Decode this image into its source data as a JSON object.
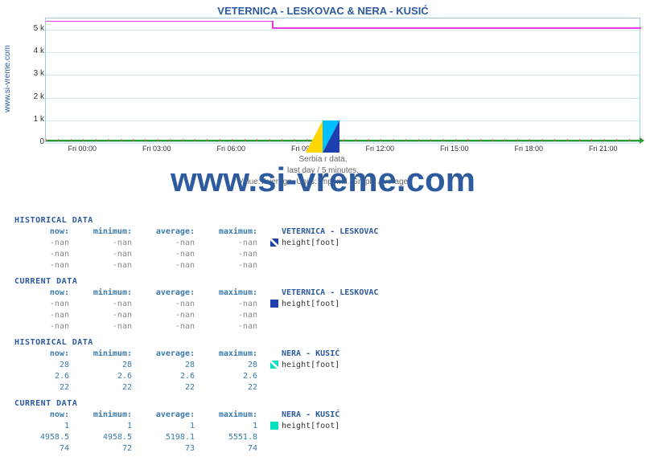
{
  "title": "VETERNICA -  LESKOVAC &  NERA -  KUSIĆ",
  "chart": {
    "type": "line",
    "background_color": "#ffffff",
    "grid_color": "#d0e6f2",
    "axis_color": "#9ec9e2",
    "title_color": "#2e5a9e",
    "ylim": [
      0,
      5500
    ],
    "yticks": [
      {
        "v": 0,
        "label": "0"
      },
      {
        "v": 1000,
        "label": "1 k"
      },
      {
        "v": 2000,
        "label": "2 k"
      },
      {
        "v": 3000,
        "label": "3 k"
      },
      {
        "v": 4000,
        "label": "4 k"
      },
      {
        "v": 5000,
        "label": "5 k"
      }
    ],
    "xticks": [
      "Fri 00:00",
      "Fri 03:00",
      "Fri 06:00",
      "Fri 09:00",
      "Fri 12:00",
      "Fri 15:00",
      "Fri 18:00",
      "Fri 21:00"
    ],
    "series": [
      {
        "name": "veternica",
        "color": "#e83ae8",
        "segments": [
          {
            "x0": 0,
            "x1": 0.38,
            "y": 5400
          },
          {
            "x0": 0.38,
            "x1": 1.0,
            "y": 5100
          }
        ]
      }
    ]
  },
  "ylabel": "www.si-vreme.com",
  "subtitle_lines": [
    "Serbia           r data.",
    "last day / 5 minutes.",
    "Value: Average. Units: imperial. Graph: Average"
  ],
  "watermark": "www.si-vreme.com",
  "logo_colors": {
    "yellow": "#ffd700",
    "blue": "#1e40af",
    "cyan": "#00bfff"
  },
  "tables": [
    {
      "section": "HISTORICAL DATA",
      "station": "VETERNICA -  LESKOVAC",
      "hdr": [
        "now:",
        "minimum:",
        "average:",
        "maximum:"
      ],
      "rows": [
        {
          "cells": [
            "-nan",
            "-nan",
            "-nan",
            "-nan"
          ],
          "legend": {
            "sq_color": "#1e40af",
            "sq_mark": true,
            "label": "height[foot]"
          }
        },
        {
          "cells": [
            "-nan",
            "-nan",
            "-nan",
            "-nan"
          ]
        },
        {
          "cells": [
            "-nan",
            "-nan",
            "-nan",
            "-nan"
          ]
        }
      ],
      "dim": true
    },
    {
      "section": "CURRENT DATA",
      "station": "VETERNICA -  LESKOVAC",
      "hdr": [
        "now:",
        "minimum:",
        "average:",
        "maximum:"
      ],
      "rows": [
        {
          "cells": [
            "-nan",
            "-nan",
            "-nan",
            "-nan"
          ],
          "legend": {
            "sq_color": "#1e40af",
            "label": "height[foot]"
          }
        },
        {
          "cells": [
            "-nan",
            "-nan",
            "-nan",
            "-nan"
          ]
        },
        {
          "cells": [
            "-nan",
            "-nan",
            "-nan",
            "-nan"
          ]
        }
      ],
      "dim": true
    },
    {
      "section": "HISTORICAL DATA",
      "station": "NERA -  KUSIĆ",
      "hdr": [
        "now:",
        "minimum:",
        "average:",
        "maximum:"
      ],
      "rows": [
        {
          "cells": [
            "28",
            "28",
            "28",
            "28"
          ],
          "legend": {
            "sq_color": "#00e0c0",
            "sq_mark": true,
            "label": "height[foot]"
          }
        },
        {
          "cells": [
            "2.6",
            "2.6",
            "2.6",
            "2.6"
          ]
        },
        {
          "cells": [
            "22",
            "22",
            "22",
            "22"
          ]
        }
      ],
      "dim": false
    },
    {
      "section": "CURRENT DATA",
      "station": "NERA -  KUSIĆ",
      "hdr": [
        "now:",
        "minimum:",
        "average:",
        "maximum:"
      ],
      "rows": [
        {
          "cells": [
            "1",
            "1",
            "1",
            "1"
          ],
          "legend": {
            "sq_color": "#00e0c0",
            "label": "height[foot]"
          }
        },
        {
          "cells": [
            "4958.5",
            "4958.5",
            "5198.1",
            "5551.8"
          ]
        },
        {
          "cells": [
            "74",
            "72",
            "73",
            "74"
          ]
        }
      ],
      "dim": false
    }
  ]
}
